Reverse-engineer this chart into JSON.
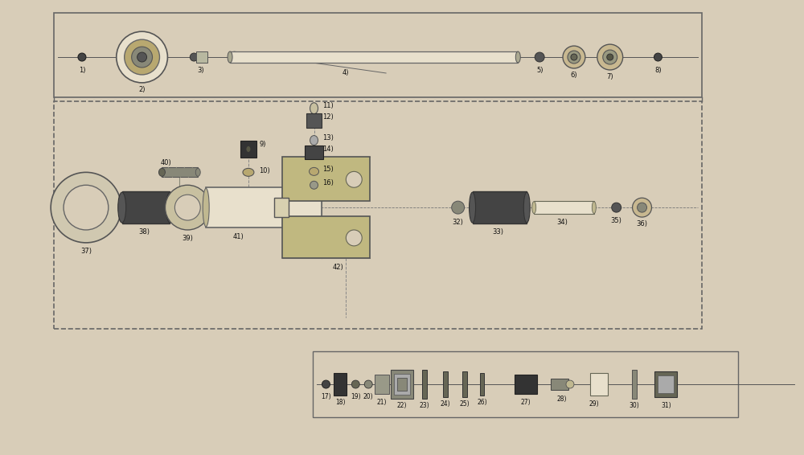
{
  "bg": "#d8cdb8",
  "lc": "#333333",
  "dark": "#222222",
  "mid_gray": "#666666",
  "light_tan": "#c8b890",
  "tan": "#b8a878",
  "white_tan": "#e8e0cc",
  "figw": 10.0,
  "figh": 5.66,
  "dpi": 100
}
